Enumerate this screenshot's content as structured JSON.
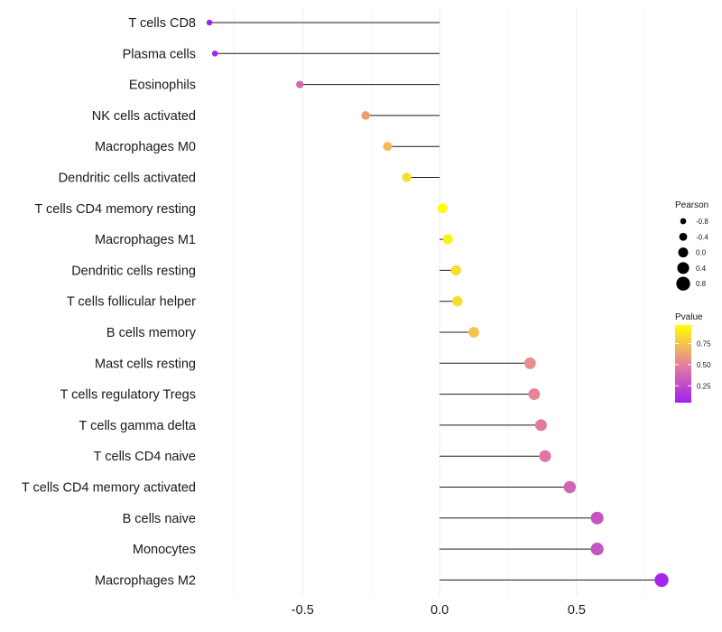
{
  "chart_data": {
    "type": "lollipop",
    "title": "",
    "xlabel": "",
    "ylabel": "",
    "xlim": [
      -0.86,
      0.8
    ],
    "xticks": [
      -0.5,
      0.0,
      0.5
    ],
    "xtick_labels": [
      "-0.5",
      "0.0",
      "0.5"
    ],
    "grid": true,
    "categories": [
      "T cells CD8",
      "Plasma cells",
      "Eosinophils",
      "NK cells activated",
      "Macrophages M0",
      "Dendritic cells activated",
      "T cells CD4 memory resting",
      "Macrophages M1",
      "Dendritic cells resting",
      "T cells follicular helper",
      "B cells memory",
      "Mast cells resting",
      "T cells regulatory  Tregs ",
      "T cells gamma delta",
      "T cells CD4 naive",
      "T cells CD4 memory activated",
      "B cells naive",
      "Monocytes",
      "Macrophages M2"
    ],
    "pearson": [
      -0.84,
      -0.82,
      -0.51,
      -0.27,
      -0.19,
      -0.12,
      0.01,
      0.03,
      0.06,
      0.065,
      0.125,
      0.33,
      0.345,
      0.37,
      0.385,
      0.475,
      0.575,
      0.575,
      0.81
    ],
    "pvalue": [
      0.05,
      0.08,
      0.38,
      0.62,
      0.72,
      0.85,
      0.97,
      0.92,
      0.85,
      0.85,
      0.75,
      0.55,
      0.52,
      0.48,
      0.45,
      0.38,
      0.3,
      0.3,
      0.08
    ],
    "legend_size": {
      "title": "Pearson",
      "labels": [
        "-0.8",
        "-0.4",
        "0.0",
        "0.4",
        "0.8"
      ],
      "values": [
        -0.8,
        -0.4,
        0.0,
        0.4,
        0.8
      ]
    },
    "legend_color": {
      "title": "Pvalue",
      "labels": [
        "0.75",
        "0.50",
        "0.25"
      ],
      "values": [
        0.75,
        0.5,
        0.25
      ],
      "range": [
        0.05,
        0.97
      ]
    },
    "colors": {
      "low": "#a020f0",
      "mid": "#e6829a",
      "high": "#ffff00"
    },
    "legend_placement": "right"
  }
}
